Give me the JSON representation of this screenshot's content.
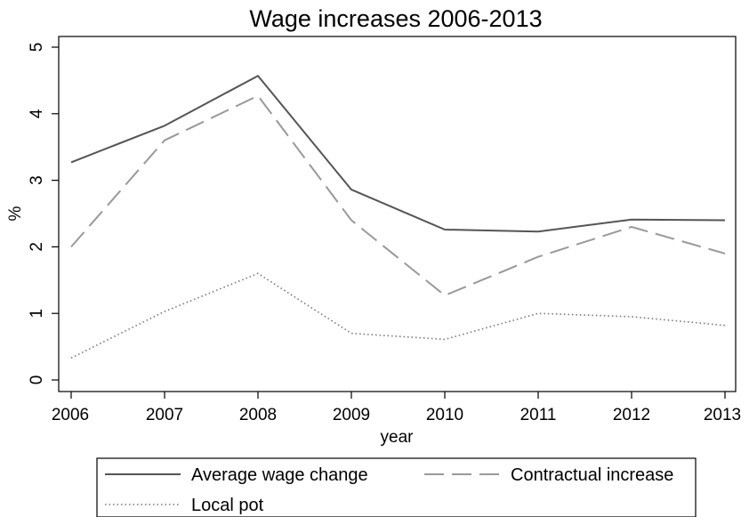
{
  "chart_data": {
    "type": "line",
    "title": "Wage increases 2006-2013",
    "xlabel": "year",
    "ylabel": "%",
    "x": [
      2006,
      2007,
      2008,
      2009,
      2010,
      2011,
      2012,
      2013
    ],
    "xlim": [
      2006,
      2013
    ],
    "ylim": [
      0,
      5
    ],
    "yticks": [
      0,
      1,
      2,
      3,
      4,
      5
    ],
    "grid": false,
    "legend_position": "bottom",
    "series": [
      {
        "name": "Average wage change",
        "values": [
          3.27,
          3.82,
          4.57,
          2.86,
          2.26,
          2.23,
          2.41,
          2.4
        ],
        "color": "#555555",
        "dash": "solid"
      },
      {
        "name": "Contractual increase",
        "values": [
          2.0,
          3.6,
          4.27,
          2.4,
          1.27,
          1.85,
          2.3,
          1.9
        ],
        "color": "#999999",
        "dash": "long-dash"
      },
      {
        "name": "Local pot",
        "values": [
          0.33,
          1.03,
          1.6,
          0.7,
          0.61,
          1.0,
          0.95,
          0.82
        ],
        "color": "#777777",
        "dash": "dotted"
      }
    ]
  }
}
